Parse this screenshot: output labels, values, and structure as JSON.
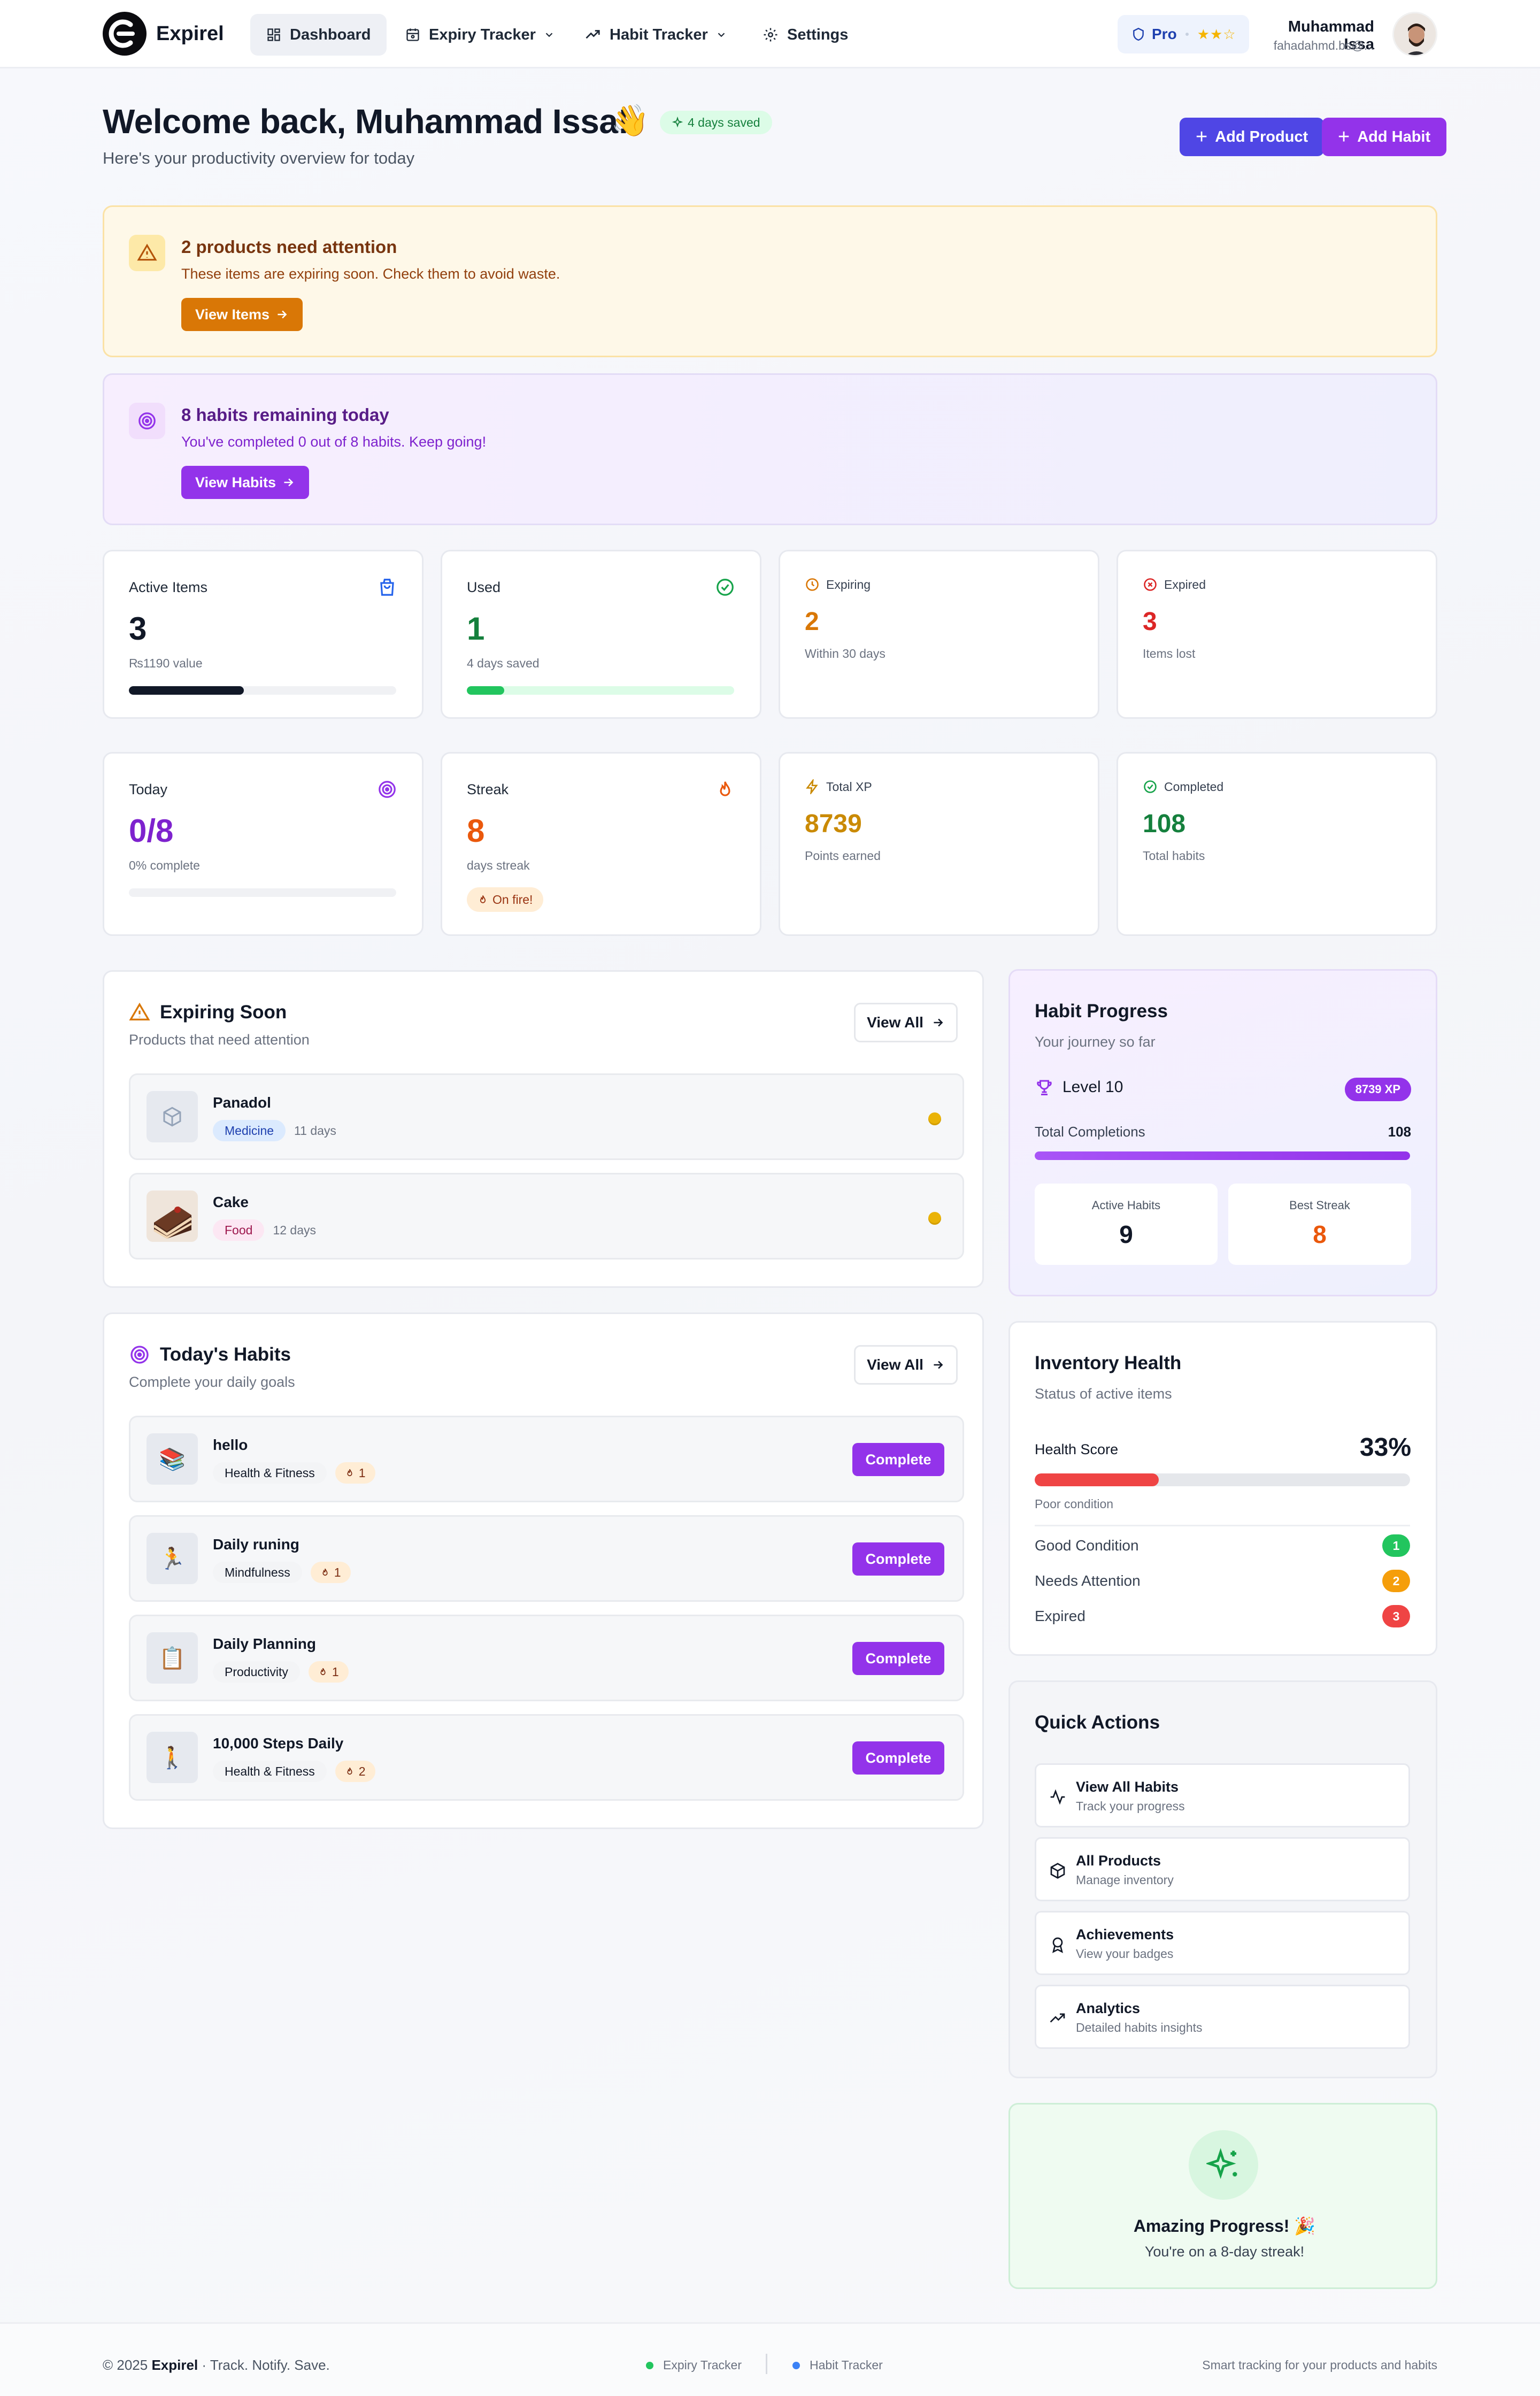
{
  "nav": {
    "brand": "Expirel",
    "items": [
      {
        "label": "Dashboard",
        "icon": "dashboard-icon",
        "active": true
      },
      {
        "label": "Expiry Tracker",
        "icon": "calendar-icon",
        "dropdown": true
      },
      {
        "label": "Habit Tracker",
        "icon": "trending-up-icon",
        "dropdown": true
      },
      {
        "label": "Settings",
        "icon": "gear-icon"
      }
    ],
    "pro_label": "Pro",
    "pro_stars": "★★☆",
    "user_name": "Muhammad Issa",
    "user_email": "fahadahmd.bs@..."
  },
  "header": {
    "welcome": "Welcome back, Muhammad Issa!",
    "wave": "👋",
    "saved_pill": "4 days saved",
    "subtitle": "Here's your productivity overview for today",
    "add_product": "Add Product",
    "add_habit": "Add Habit"
  },
  "alerts": {
    "products": {
      "title": "2 products need attention",
      "text": "These items are expiring soon. Check them to avoid waste.",
      "button": "View Items"
    },
    "habits": {
      "title": "8 habits remaining today",
      "text": "You've completed 0 out of 8 habits. Keep going!",
      "button": "View Habits"
    }
  },
  "stats": {
    "active": {
      "title": "Active Items",
      "value": "3",
      "sub": "₨1190 value",
      "progress": 0.43
    },
    "used": {
      "title": "Used",
      "value": "1",
      "sub": "4 days saved",
      "progress": 0.14
    },
    "expiring": {
      "title": "Expiring",
      "value": "2",
      "sub": "Within 30 days"
    },
    "expired": {
      "title": "Expired",
      "value": "3",
      "sub": "Items lost"
    },
    "today": {
      "title": "Today",
      "value": "0/8",
      "sub": "0% complete",
      "progress": 0.0
    },
    "streak": {
      "title": "Streak",
      "value": "8",
      "sub": "days streak",
      "pill": "On fire!"
    },
    "xp": {
      "title": "Total XP",
      "value": "8739",
      "sub": "Points earned"
    },
    "completed": {
      "title": "Completed",
      "value": "108",
      "sub": "Total habits"
    }
  },
  "expiring_soon": {
    "title": "Expiring Soon",
    "subtitle": "Products that need attention",
    "view_all": "View All",
    "items": [
      {
        "name": "Panadol",
        "tag": "Medicine",
        "days": "11 days"
      },
      {
        "name": "Cake",
        "tag": "Food",
        "days": "12 days"
      }
    ]
  },
  "todays_habits": {
    "title": "Today's Habits",
    "subtitle": "Complete your daily goals",
    "view_all": "View All",
    "complete_label": "Complete",
    "items": [
      {
        "name": "hello",
        "emoji": "📚",
        "category": "Health & Fitness",
        "streak": "1"
      },
      {
        "name": "Daily runing",
        "emoji": "🏃",
        "category": "Mindfulness",
        "streak": "1"
      },
      {
        "name": "Daily Planning",
        "emoji": "📋",
        "category": "Productivity",
        "streak": "1"
      },
      {
        "name": "10,000 Steps Daily",
        "emoji": "🚶",
        "category": "Health & Fitness",
        "streak": "2"
      }
    ]
  },
  "habit_progress": {
    "title": "Habit Progress",
    "subtitle": "Your journey so far",
    "level": "Level 10",
    "xp": "8739 XP",
    "total_label": "Total Completions",
    "total_value": "108",
    "total_progress": 1.0,
    "active_label": "Active Habits",
    "active_value": "9",
    "best_label": "Best Streak",
    "best_value": "8"
  },
  "inventory_health": {
    "title": "Inventory Health",
    "subtitle": "Status of active items",
    "score_label": "Health Score",
    "score_value": "33%",
    "score_progress": 0.33,
    "condition": "Poor condition",
    "rows": [
      {
        "label": "Good Condition",
        "count": "1",
        "color": "#22c55e"
      },
      {
        "label": "Needs Attention",
        "count": "2",
        "color": "#f59e0b"
      },
      {
        "label": "Expired",
        "count": "3",
        "color": "#ef4444"
      }
    ]
  },
  "quick_actions": {
    "title": "Quick Actions",
    "items": [
      {
        "name": "View All Habits",
        "desc": "Track your progress",
        "icon": "activity-icon"
      },
      {
        "name": "All Products",
        "desc": "Manage inventory",
        "icon": "package-icon"
      },
      {
        "name": "Achievements",
        "desc": "View your badges",
        "icon": "award-icon"
      },
      {
        "name": "Analytics",
        "desc": "Detailed habits insights",
        "icon": "trending-up-icon"
      }
    ]
  },
  "amazing": {
    "title": "Amazing Progress! 🎉",
    "text": "You're on a 8-day streak!"
  },
  "footer": {
    "copyright": "© 2025",
    "brand": "Expirel",
    "tagline": "· Track. Notify. Save.",
    "link1": "Expiry Tracker",
    "link2": "Habit Tracker",
    "right": "Smart tracking for your products and habits"
  },
  "colors": {
    "indigo": "#4f46e5",
    "purple": "#9333ea",
    "amber": "#d97706",
    "green": "#16a34a",
    "red": "#dc2626",
    "orange": "#ea580c"
  }
}
